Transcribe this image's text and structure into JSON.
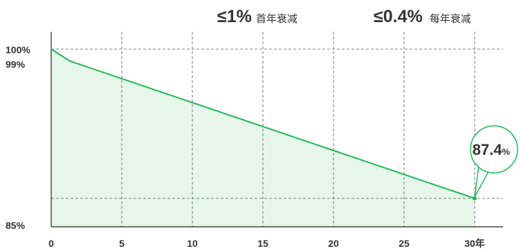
{
  "header": {
    "first_year_value": "≤1%",
    "first_year_label": "首年衰减",
    "annual_value": "≤0.4%",
    "annual_label": "每年衰减"
  },
  "chart_data": {
    "type": "area",
    "x": [
      0,
      1.3,
      30
    ],
    "y": [
      100,
      99,
      87.4
    ],
    "xlim": [
      0,
      30
    ],
    "ylim": [
      85,
      100
    ],
    "x_ticks": [
      "0",
      "5",
      "10",
      "15",
      "20",
      "25",
      "30年"
    ],
    "y_tick_labels": [
      "100%",
      "99%",
      "85%"
    ],
    "callout": {
      "value": "87.4",
      "unit": "%"
    },
    "grid": true,
    "colors": {
      "line": "#1db954",
      "fill": "#e6f6ea",
      "grid": "#555555",
      "text": "#333333"
    }
  }
}
